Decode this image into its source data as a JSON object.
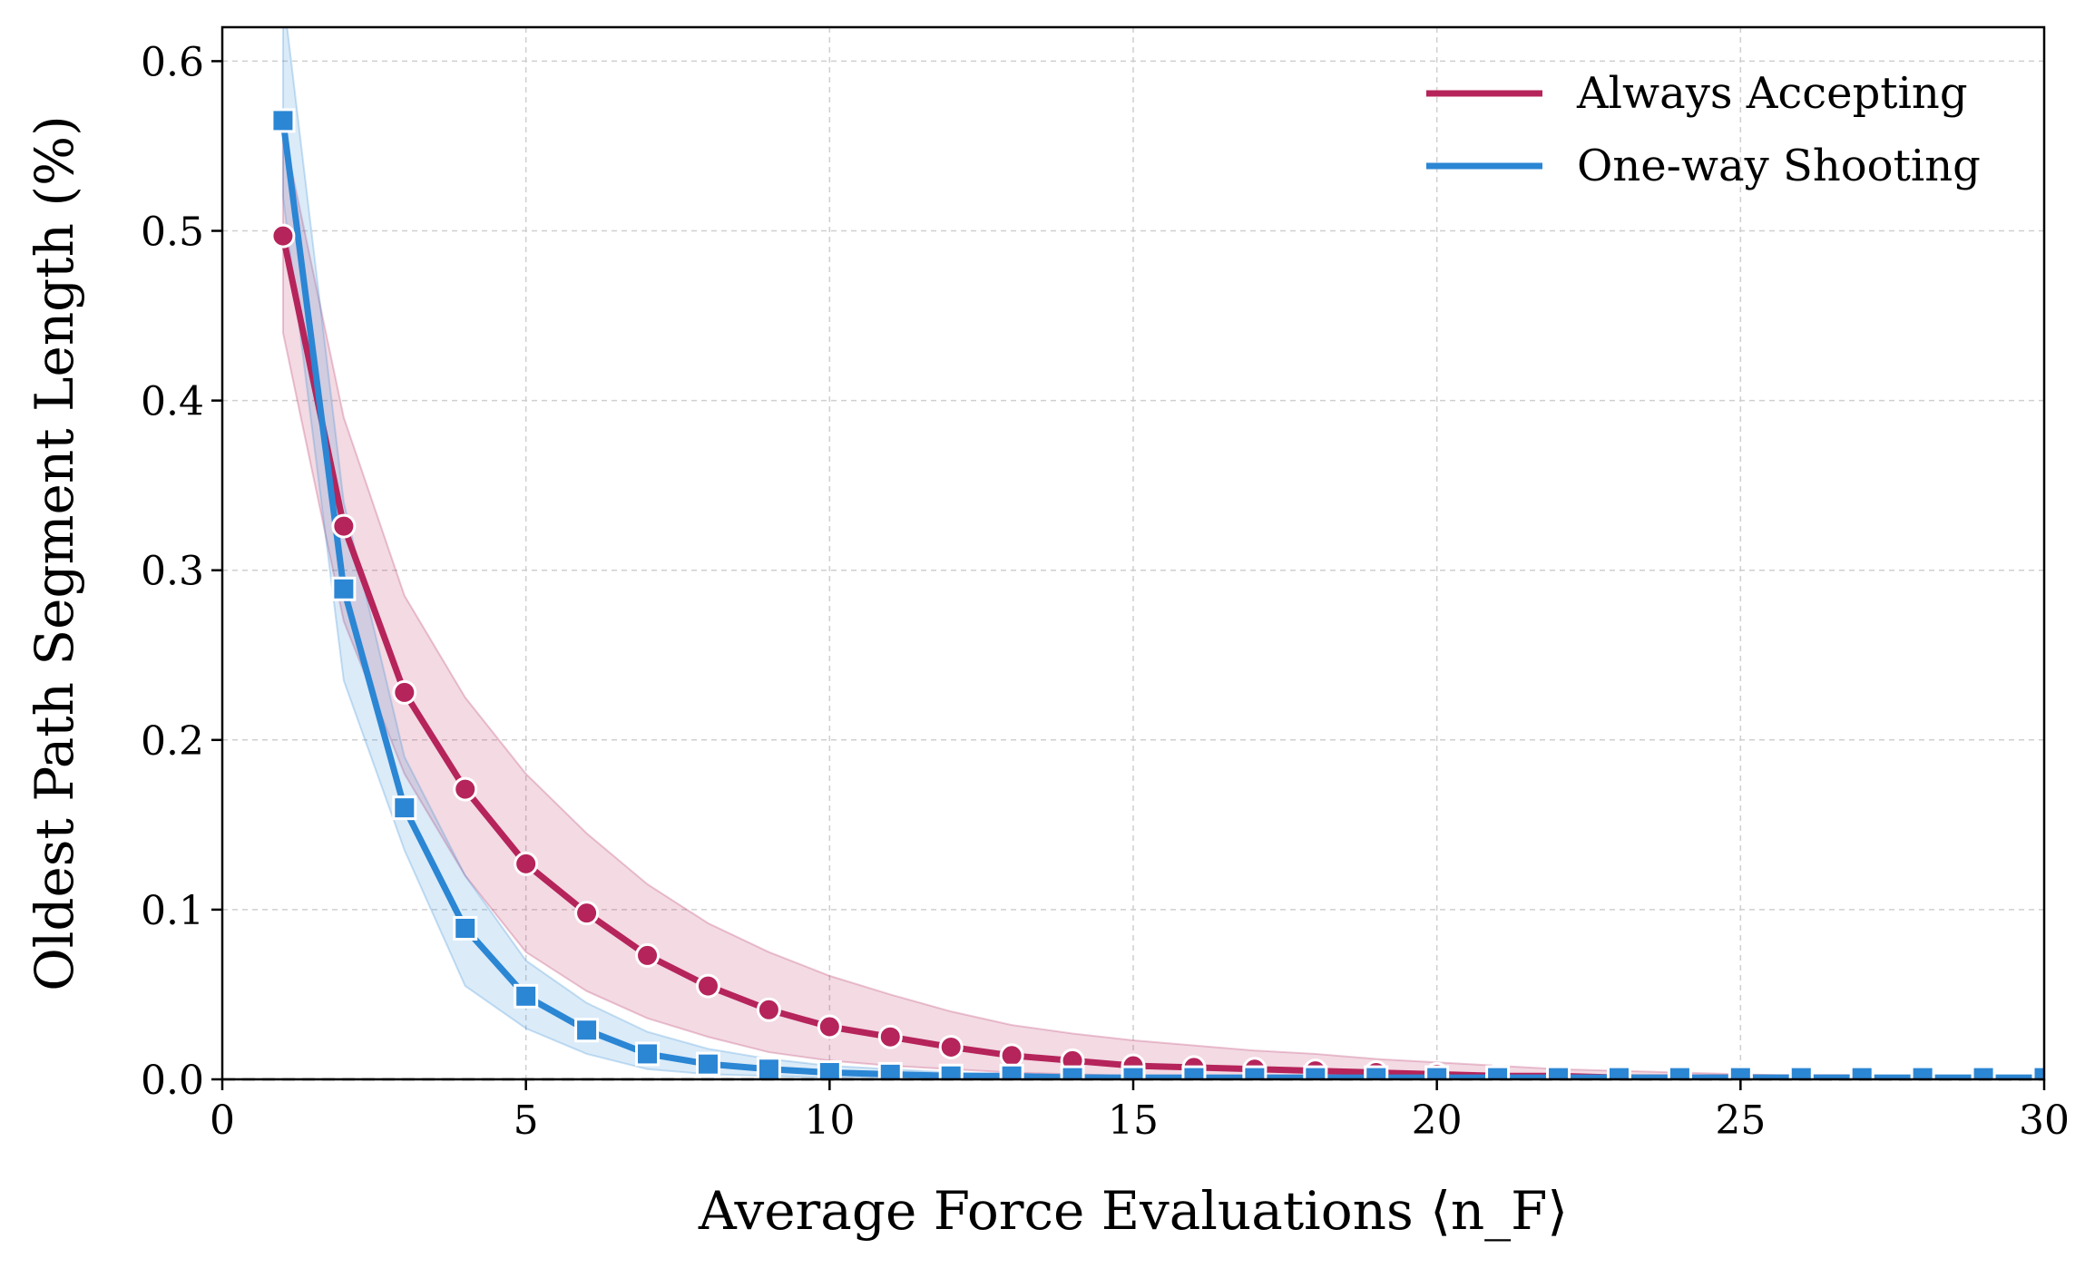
{
  "chart_data": {
    "type": "line",
    "xlabel": "Average Force Evaluations ⟨n_F⟩",
    "ylabel": "Oldest Path Segment Length (%)",
    "xlim": [
      0,
      30
    ],
    "ylim": [
      0,
      0.62
    ],
    "xticks": [
      0,
      5,
      10,
      15,
      20,
      25,
      30
    ],
    "yticks": [
      0.0,
      0.1,
      0.2,
      0.3,
      0.4,
      0.5,
      0.6
    ],
    "xtick_labels": [
      "0",
      "5",
      "10",
      "15",
      "20",
      "25",
      "30"
    ],
    "ytick_labels": [
      "0.0",
      "0.1",
      "0.2",
      "0.3",
      "0.4",
      "0.5",
      "0.6"
    ],
    "grid": true,
    "legend_position": "top-right",
    "reference_line_y": 0,
    "series": [
      {
        "name": "Always Accepting",
        "color": "#b5245a",
        "marker": "circle",
        "x": [
          1,
          2,
          3,
          4,
          5,
          6,
          7,
          8,
          9,
          10,
          11,
          12,
          13,
          14,
          15,
          16,
          17,
          18,
          19,
          20,
          21,
          22,
          23,
          24,
          25,
          26,
          27,
          28,
          29,
          30
        ],
        "y": [
          0.497,
          0.326,
          0.228,
          0.171,
          0.127,
          0.098,
          0.073,
          0.055,
          0.041,
          0.031,
          0.025,
          0.019,
          0.014,
          0.011,
          0.008,
          0.007,
          0.006,
          0.005,
          0.004,
          0.003,
          0.002,
          0.002,
          0.001,
          0.001,
          0.001,
          0.001,
          0.001,
          0.0,
          0.0,
          0.0
        ],
        "band_lower": [
          0.44,
          0.27,
          0.18,
          0.12,
          0.075,
          0.052,
          0.036,
          0.025,
          0.016,
          0.011,
          0.008,
          0.006,
          0.004,
          0.003,
          0.002,
          0.002,
          0.001,
          0.001,
          0.001,
          0.0,
          0.0,
          0.0,
          0.0,
          0.0,
          0.0,
          0.0,
          0.0,
          0.0,
          0.0,
          0.0
        ],
        "band_upper": [
          0.56,
          0.39,
          0.285,
          0.225,
          0.18,
          0.145,
          0.115,
          0.092,
          0.075,
          0.061,
          0.05,
          0.04,
          0.032,
          0.027,
          0.023,
          0.02,
          0.017,
          0.015,
          0.012,
          0.01,
          0.008,
          0.006,
          0.005,
          0.004,
          0.003,
          0.002,
          0.002,
          0.001,
          0.001,
          0.001
        ]
      },
      {
        "name": "One-way Shooting",
        "color": "#2b86d4",
        "marker": "square",
        "x": [
          1,
          2,
          3,
          4,
          5,
          6,
          7,
          8,
          9,
          10,
          11,
          12,
          13,
          14,
          15,
          16,
          17,
          18,
          19,
          20,
          21,
          22,
          23,
          24,
          25,
          26,
          27,
          28,
          29,
          30
        ],
        "y": [
          0.565,
          0.289,
          0.16,
          0.089,
          0.049,
          0.029,
          0.015,
          0.009,
          0.006,
          0.004,
          0.003,
          0.002,
          0.002,
          0.001,
          0.001,
          0.001,
          0.001,
          0.001,
          0.001,
          0.001,
          0.001,
          0.001,
          0.001,
          0.001,
          0.001,
          0.001,
          0.001,
          0.001,
          0.001,
          0.001
        ],
        "band_lower": [
          0.52,
          0.235,
          0.135,
          0.055,
          0.03,
          0.015,
          0.006,
          0.003,
          0.002,
          0.001,
          0.001,
          0.0,
          0.0,
          0.0,
          0.0,
          0.0,
          0.0,
          0.0,
          0.0,
          0.0,
          0.0,
          0.0,
          0.0,
          0.0,
          0.0,
          0.0,
          0.0,
          0.0,
          0.0,
          0.0
        ],
        "band_upper": [
          0.64,
          0.34,
          0.19,
          0.12,
          0.07,
          0.045,
          0.028,
          0.018,
          0.012,
          0.008,
          0.006,
          0.004,
          0.003,
          0.003,
          0.002,
          0.002,
          0.002,
          0.002,
          0.002,
          0.002,
          0.001,
          0.001,
          0.001,
          0.001,
          0.001,
          0.001,
          0.001,
          0.001,
          0.001,
          0.001
        ]
      }
    ]
  }
}
